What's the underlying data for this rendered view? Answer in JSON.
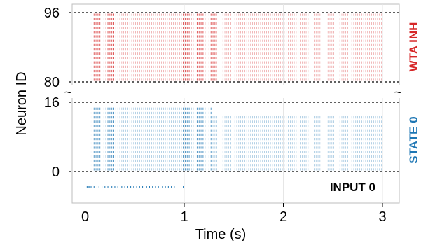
{
  "chart_data": {
    "type": "scatter",
    "subtype": "raster-plot",
    "xlabel": "Time (s)",
    "ylabel": "Neuron ID",
    "xlim": [
      -0.12,
      3.17
    ],
    "x_ticks": [
      0,
      1,
      2,
      3
    ],
    "x_tick_labels": [
      "0",
      "1",
      "2",
      "3"
    ],
    "y_axis_break": true,
    "y_break_marker": "~",
    "y_ticks": [
      {
        "value": 96,
        "label": "96"
      },
      {
        "value": 80,
        "label": "80"
      },
      {
        "value": 16,
        "label": "16"
      },
      {
        "value": 0,
        "label": "0"
      }
    ],
    "grid": true,
    "panels": [
      {
        "label": "WTA INH",
        "color": "#d62728",
        "neuron_range": [
          80,
          96
        ],
        "rows": 16,
        "spike_window": [
          0.05,
          3.0
        ],
        "dense_window": [
          0.05,
          0.32
        ],
        "burst_window": [
          0.95,
          1.32
        ],
        "period_s": 0.02
      },
      {
        "label": "STATE 0",
        "color": "#1f77b4",
        "neuron_range": [
          0,
          16
        ],
        "rows": 15,
        "spike_window": [
          0.05,
          3.0
        ],
        "dense_window": [
          0.05,
          0.32
        ],
        "burst_window": [
          0.95,
          1.28
        ],
        "late_sparse_rows": [
          13,
          14,
          15
        ],
        "period_s": 0.02
      },
      {
        "label": "INPUT 0",
        "label_color": "#000000",
        "color": "#1f77b4",
        "spike_window": [
          0.0,
          1.0
        ],
        "spike_times": [
          0.02,
          0.03,
          0.04,
          0.06,
          0.09,
          0.12,
          0.14,
          0.17,
          0.2,
          0.23,
          0.27,
          0.3,
          0.33,
          0.37,
          0.4,
          0.43,
          0.46,
          0.49,
          0.52,
          0.55,
          0.58,
          0.62,
          0.65,
          0.68,
          0.71,
          0.74,
          0.78,
          0.81,
          0.84,
          0.87,
          0.9,
          0.99
        ]
      }
    ]
  }
}
